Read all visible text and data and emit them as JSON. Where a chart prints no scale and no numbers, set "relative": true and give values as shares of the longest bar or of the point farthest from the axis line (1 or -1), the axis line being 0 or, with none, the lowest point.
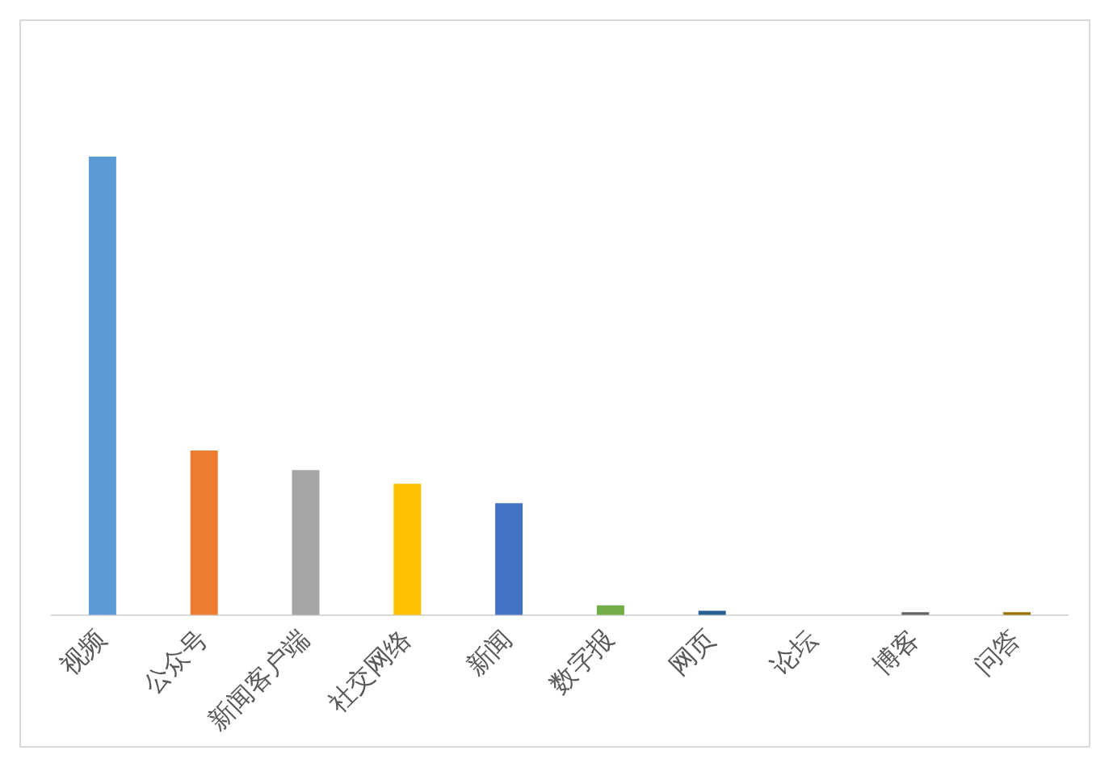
{
  "chart_data": {
    "type": "bar",
    "relative": true,
    "categories": [
      "视频",
      "公众号",
      "新闻客户端",
      "社交网络",
      "新闻",
      "数字报",
      "网页",
      "论坛",
      "博客",
      "问答"
    ],
    "values": [
      1,
      0.359,
      0.316,
      0.286,
      0.244,
      0.021,
      0.009,
      0,
      0.006,
      0.006
    ],
    "colors": [
      "#5b9bd5",
      "#ed7d31",
      "#a5a5a5",
      "#ffc000",
      "#4472c4",
      "#70ad47",
      "#255e91",
      "#9e480e",
      "#636363",
      "#997300"
    ],
    "grid": false,
    "legend": false
  }
}
